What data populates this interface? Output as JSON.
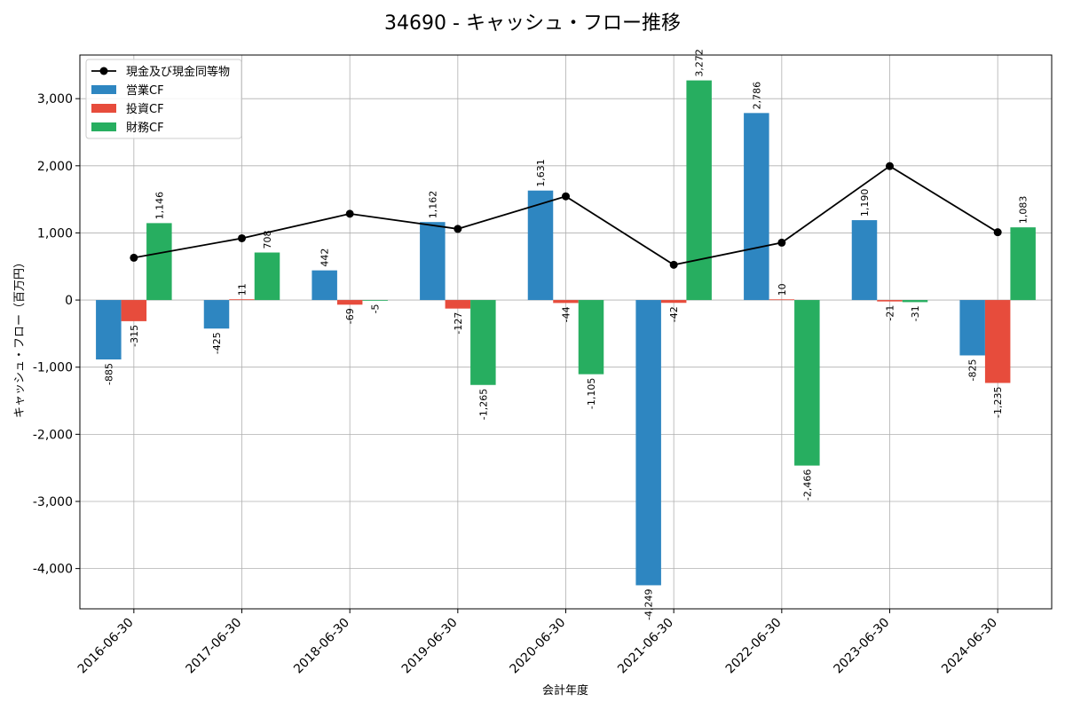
{
  "chart_data": {
    "type": "bar",
    "title": "34690 - キャッシュ・フロー推移",
    "xlabel": "会計年度",
    "ylabel": "キャッシュ・フロー（百万円）",
    "ylim": [
      -4600,
      3650
    ],
    "yticks": [
      -4000,
      -3000,
      -2000,
      -1000,
      0,
      1000,
      2000,
      3000
    ],
    "ytick_labels": [
      "-4,000",
      "-3,000",
      "-2,000",
      "-1,000",
      "0",
      "1,000",
      "2,000",
      "3,000"
    ],
    "grid": true,
    "legend_position": "top-left",
    "categories": [
      "2016-06-30",
      "2017-06-30",
      "2018-06-30",
      "2019-06-30",
      "2020-06-30",
      "2021-06-30",
      "2022-06-30",
      "2023-06-30",
      "2024-06-30"
    ],
    "series": [
      {
        "name": "営業CF",
        "kind": "bar",
        "color": "#2e86c1",
        "values": [
          -885,
          -425,
          442,
          1162,
          1631,
          -4249,
          2786,
          1190,
          -825
        ],
        "labels": [
          "-885",
          "-425",
          "442",
          "1,162",
          "1,631",
          "-4,249",
          "2,786",
          "1,190",
          "-825"
        ]
      },
      {
        "name": "投資CF",
        "kind": "bar",
        "color": "#e74c3c",
        "values": [
          -315,
          11,
          -69,
          -127,
          -44,
          -42,
          10,
          -21,
          -1235
        ],
        "labels": [
          "-315",
          "11",
          "-69",
          "-127",
          "-44",
          "-42",
          "10",
          "-21",
          "-1,235"
        ]
      },
      {
        "name": "財務CF",
        "kind": "bar",
        "color": "#27ae60",
        "values": [
          1146,
          708,
          -5,
          -1265,
          -1105,
          3272,
          -2466,
          -31,
          1083
        ],
        "labels": [
          "1,146",
          "708",
          "-5",
          "-1,265",
          "-1,105",
          "3,272",
          "-2,466",
          "-31",
          "1,083"
        ]
      },
      {
        "name": "現金及び現金同等物",
        "kind": "line",
        "color": "#000000",
        "values": [
          630,
          920,
          1285,
          1060,
          1545,
          525,
          855,
          1995,
          1010
        ]
      }
    ]
  }
}
